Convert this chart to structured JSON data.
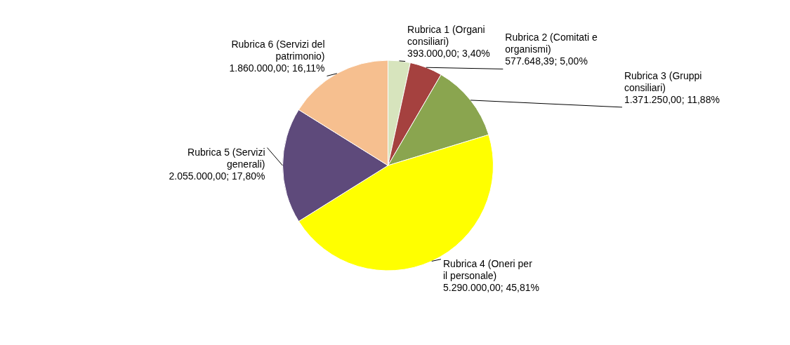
{
  "chart_data": {
    "type": "pie",
    "categories": [
      "Rubrica 1 (Organi consiliari)",
      "Rubrica 2 (Comitati e organismi)",
      "Rubrica 3 (Gruppi consiliari)",
      "Rubrica 4 (Oneri per il personale)",
      "Rubrica 5 (Servizi generali)",
      "Rubrica 6 (Servizi del patrimonio)"
    ],
    "values": [
      393000,
      577648.39,
      1371250,
      5290000,
      2055000,
      1860000
    ],
    "value_labels": [
      "393.000,00; 3,40%",
      "577.648,39; 5,00%",
      "1.371.250,00; 11,88%",
      "5.290.000,00; 45,81%",
      "2.055.000,00; 17,80%",
      "1.860.000,00; 16,11%"
    ],
    "colors": [
      "#d7e4bd",
      "#a5413f",
      "#8aa54f",
      "#ffff00",
      "#5e4a7b",
      "#f6bf8f"
    ],
    "legend": false
  }
}
